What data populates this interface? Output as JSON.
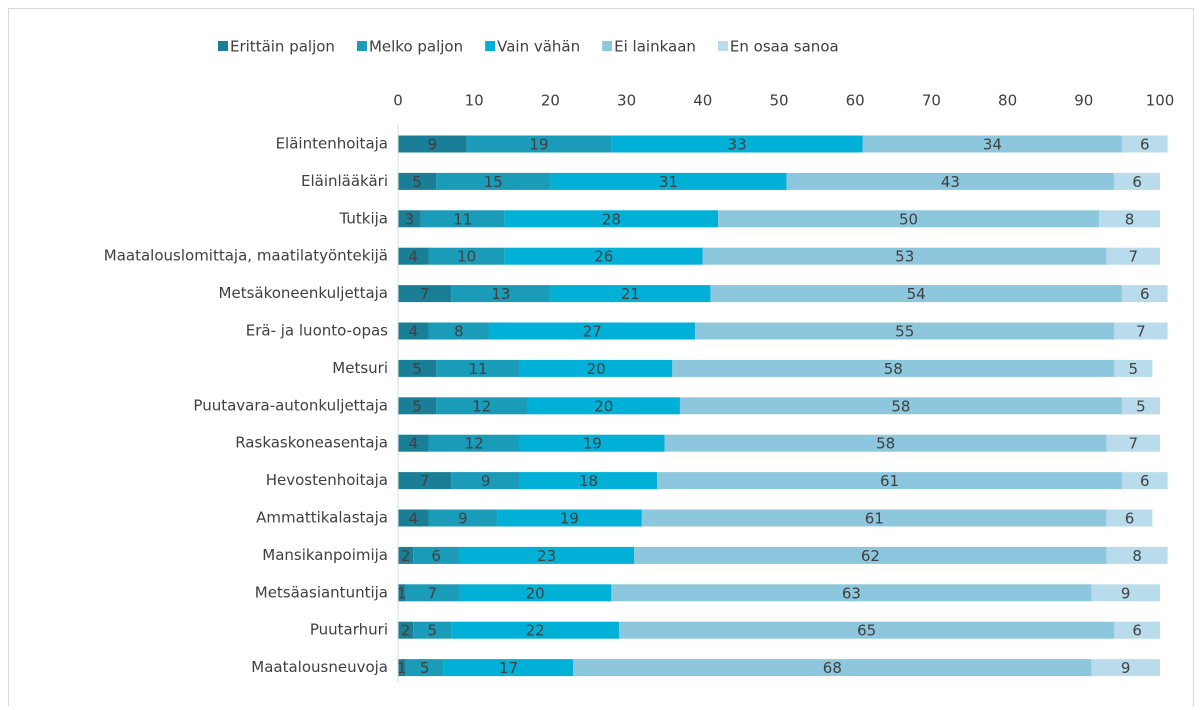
{
  "chart_data": {
    "type": "stacked_bar_horizontal",
    "categories": [
      "Eläintenhoitaja",
      "Eläinlääkäri",
      "Tutkija",
      "Maatalouslomittaja, maatilatyöntekijä",
      "Metsäkoneenkuljettaja",
      "Erä- ja luonto-opas",
      "Metsuri",
      "Puutavara-autonkuljettaja",
      "Raskaskoneasentaja",
      "Hevostenhoitaja",
      "Ammattikalastaja",
      "Mansikanpoimija",
      "Metsäasiantuntija",
      "Puutarhuri",
      "Maatalousneuvoja"
    ],
    "series": [
      {
        "name": "Erittäin paljon",
        "color": "#1a7f96",
        "values": [
          9,
          5,
          3,
          4,
          7,
          4,
          5,
          5,
          4,
          7,
          4,
          2,
          1,
          2,
          1
        ]
      },
      {
        "name": "Melko paljon",
        "color": "#1a9bb8",
        "values": [
          19,
          15,
          11,
          10,
          13,
          8,
          11,
          12,
          12,
          9,
          9,
          6,
          7,
          5,
          5
        ]
      },
      {
        "name": "Vain vähän",
        "color": "#00b0d6",
        "values": [
          33,
          31,
          28,
          26,
          21,
          27,
          20,
          20,
          19,
          18,
          19,
          23,
          20,
          22,
          17
        ]
      },
      {
        "name": "Ei lainkaan",
        "color": "#8dc7dd",
        "values": [
          34,
          43,
          50,
          53,
          54,
          55,
          58,
          58,
          58,
          61,
          61,
          62,
          63,
          65,
          68
        ]
      },
      {
        "name": "En osaa sanoa",
        "color": "#b9dcec",
        "values": [
          6,
          6,
          8,
          7,
          6,
          7,
          5,
          5,
          7,
          6,
          6,
          8,
          9,
          6,
          9
        ]
      }
    ],
    "xlim": [
      0,
      100
    ],
    "xticks": [
      0,
      10,
      20,
      30,
      40,
      50,
      60,
      70,
      80,
      90,
      100
    ]
  }
}
